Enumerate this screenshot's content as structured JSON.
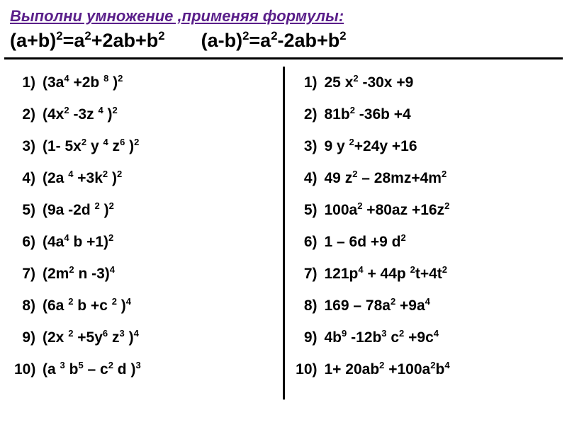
{
  "title_color": "#5a1f8a",
  "title": "Выполни умножение ,применяя формулы:",
  "formula1_html": "(a+b)<sup>2</sup>=a<sup>2</sup>+2ab+b<sup>2</sup>",
  "formula2_html": "(a-b)<sup>2</sup>=a<sup>2</sup>-2ab+b<sup>2</sup>",
  "left": [
    "(3a<sup>4</sup>  +2b <sup>8</sup> )<sup>2</sup>",
    "(4x<sup>2</sup> -3z <sup>4</sup> )<sup>2</sup>",
    "(1- 5x<sup>2</sup> y <sup>4</sup> z<sup>6</sup> )<sup>2</sup>",
    "(2a <sup>4</sup> +3k<sup>2</sup> )<sup>2</sup>",
    "(9a  -2d  <sup>2</sup> )<sup>2</sup>",
    "(4a<sup>4</sup> b  +1)<sup>2</sup>",
    "(2m<sup>2</sup> n -3)<sup>4</sup>",
    "(6a <sup>2</sup> b +c <sup>2</sup> )<sup>4</sup>",
    "(2x <sup>2</sup> +5y<sup>6</sup> z<sup>3</sup> )<sup>4</sup>",
    "(a <sup>3</sup> b<sup>5</sup> – c<sup>2</sup> d  )<sup>3</sup>"
  ],
  "right": [
    "25 x<sup>2</sup>  -30x +9",
    "81b<sup>2</sup>  -36b +4",
    "9 y <sup>2</sup>+24y +16",
    "49 z<sup>2</sup> – 28mz+4m<sup>2</sup>",
    "100a<sup>2</sup> +80az +16z<sup>2</sup>",
    "1 – 6d +9 d<sup>2</sup>",
    "121p<sup>4</sup> + 44p <sup>2</sup>t+4t<sup>2</sup>",
    "169 – 78a<sup>2</sup> +9a<sup>4</sup>",
    "4b<sup>9</sup> -12b<sup>3</sup> c<sup>2</sup> +9c<sup>4</sup>",
    "1+ 20ab<sup>2</sup> +100a<sup>2</sup>b<sup>4</sup>"
  ],
  "text_color": "#000000",
  "background": "#ffffff",
  "font_family": "Arial, sans-serif",
  "title_fontsize": 22,
  "formula_fontsize": 27,
  "item_fontsize": 21
}
